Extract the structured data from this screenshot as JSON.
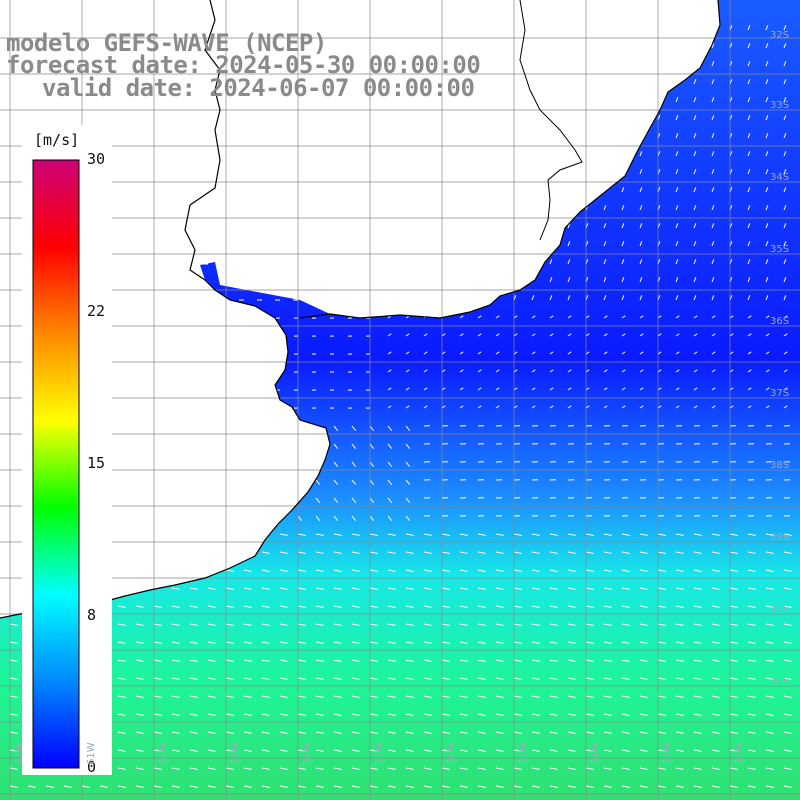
{
  "titles": {
    "line1": "modelo GEFS-WAVE (NCEP)",
    "line2": "forecast date: 2024-05-30 00:00:00",
    "line3": "valid date: 2024-06-07 00:00:00"
  },
  "colorbar": {
    "unit": "[m/s]",
    "min": 0,
    "max": 30,
    "ticks": [
      "30",
      "22",
      "15",
      "8",
      "0"
    ],
    "tick_values": [
      30,
      22,
      15,
      8,
      0
    ],
    "colors": [
      "#0000ff",
      "#0088ff",
      "#00ffff",
      "#00ff00",
      "#ffff00",
      "#ff8800",
      "#ff0000",
      "#cc0077"
    ]
  },
  "map": {
    "variable": "wind speed with direction arrows",
    "ocean_color_low": "#0a1aff",
    "ocean_color_mid": "#1ea0ff",
    "ocean_color_high": "#1ef59a",
    "land_color": "#ffffff",
    "grid_color": "#888888",
    "coast_color": "#000000",
    "lat_labels": [
      "32S",
      "33S",
      "34S",
      "35S",
      "36S",
      "37S",
      "38S",
      "39S",
      "40S",
      "41S"
    ],
    "lon_labels": [
      "62W",
      "61W",
      "60W",
      "59W",
      "58W",
      "57W",
      "56W",
      "55W",
      "54W",
      "53W",
      "52W"
    ]
  }
}
